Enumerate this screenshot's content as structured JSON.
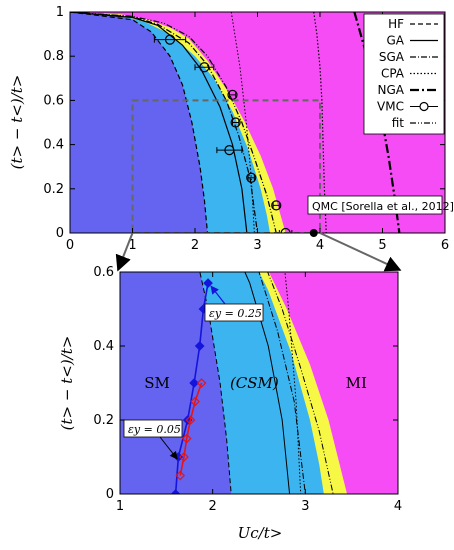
{
  "colors": {
    "sm": "#6464f0",
    "csm": "#3cb4f0",
    "yellow": "#f7f746",
    "mi": "#f54cf5",
    "blue_line": "#1414dc",
    "red_line": "#e61414",
    "inset_box": "#666666"
  },
  "chart_data": [
    {
      "type": "line",
      "xlabel": "",
      "ylabel": "(t> − t<)/t>",
      "xlim": [
        0,
        6
      ],
      "ylim": [
        0,
        1
      ],
      "x_ticks": [
        0,
        1,
        2,
        3,
        4,
        5,
        6
      ],
      "y_ticks": [
        0,
        0.2,
        0.4,
        0.6,
        0.8,
        1
      ],
      "x_tick_labels": [
        "0",
        "1",
        "2",
        "3",
        "4",
        "5",
        "6"
      ],
      "y_tick_labels": [
        "0",
        "0.2",
        "0.4",
        "0.6",
        "0.8",
        "1"
      ],
      "legend_position": "top-right",
      "legend": [
        {
          "label": "HF",
          "style": "dashed"
        },
        {
          "label": "GA",
          "style": "solid"
        },
        {
          "label": "SGA",
          "style": "dash-dot-fine"
        },
        {
          "label": "CPA",
          "style": "dotted"
        },
        {
          "label": "NGA",
          "style": "dash-dot"
        },
        {
          "label": "VMC",
          "style": "circle-errorbar"
        },
        {
          "label": "fit",
          "style": "dash-dot-dot"
        }
      ],
      "regions": [
        {
          "name": "sm",
          "boundary": [
            [
              0.0,
              1.0
            ],
            [
              0.6,
              0.99
            ],
            [
              1.0,
              0.965
            ],
            [
              1.3,
              0.91
            ],
            [
              1.6,
              0.8
            ],
            [
              1.8,
              0.67
            ],
            [
              1.95,
              0.5
            ],
            [
              2.08,
              0.3
            ],
            [
              2.15,
              0.15
            ],
            [
              2.2,
              0.0
            ]
          ]
        },
        {
          "name": "csm",
          "boundary": [
            [
              0.0,
              1.0
            ],
            [
              0.8,
              0.985
            ],
            [
              1.2,
              0.955
            ],
            [
              1.6,
              0.9
            ],
            [
              2.0,
              0.8
            ],
            [
              2.3,
              0.7
            ],
            [
              2.6,
              0.55
            ],
            [
              2.85,
              0.38
            ],
            [
              3.05,
              0.2
            ],
            [
              3.15,
              0.08
            ],
            [
              3.2,
              0.0
            ]
          ]
        },
        {
          "name": "yellow",
          "boundary": [
            [
              0.0,
              1.0
            ],
            [
              0.8,
              0.99
            ],
            [
              1.2,
              0.97
            ],
            [
              1.6,
              0.93
            ],
            [
              1.9,
              0.88
            ],
            [
              2.2,
              0.78
            ],
            [
              2.55,
              0.63
            ],
            [
              2.8,
              0.5
            ],
            [
              3.05,
              0.35
            ],
            [
              3.25,
              0.2
            ],
            [
              3.45,
              0.0
            ]
          ]
        },
        {
          "name": "mi_line",
          "boundary": [
            [
              2.58,
              1.0
            ],
            [
              2.72,
              0.75
            ],
            [
              2.82,
              0.5
            ],
            [
              2.9,
              0.25
            ],
            [
              2.95,
              0.0
            ]
          ]
        }
      ],
      "series": [
        {
          "name": "HF",
          "style": "dashed",
          "points": [
            [
              0,
              1
            ],
            [
              1.0,
              0.965
            ],
            [
              1.3,
              0.91
            ],
            [
              1.6,
              0.8
            ],
            [
              1.8,
              0.67
            ],
            [
              1.95,
              0.5
            ],
            [
              2.08,
              0.3
            ],
            [
              2.15,
              0.15
            ],
            [
              2.2,
              0.0
            ]
          ]
        },
        {
          "name": "GA",
          "style": "solid",
          "points": [
            [
              0,
              1
            ],
            [
              1.0,
              0.975
            ],
            [
              1.4,
              0.94
            ],
            [
              1.8,
              0.85
            ],
            [
              2.1,
              0.74
            ],
            [
              2.4,
              0.57
            ],
            [
              2.6,
              0.4
            ],
            [
              2.75,
              0.2
            ],
            [
              2.83,
              0.0
            ]
          ]
        },
        {
          "name": "SGA",
          "style": "dash-dot-fine",
          "points": [
            [
              0,
              1
            ],
            [
              1.0,
              0.978
            ],
            [
              1.4,
              0.945
            ],
            [
              1.9,
              0.86
            ],
            [
              2.2,
              0.76
            ],
            [
              2.5,
              0.6
            ],
            [
              2.7,
              0.44
            ],
            [
              2.88,
              0.25
            ],
            [
              3.0,
              0.0
            ]
          ]
        },
        {
          "name": "CPA",
          "style": "dotted",
          "points": [
            [
              3.9,
              1.0
            ],
            [
              3.95,
              0.9
            ],
            [
              4.0,
              0.75
            ],
            [
              4.03,
              0.6
            ],
            [
              4.05,
              0.4
            ],
            [
              4.07,
              0.2
            ],
            [
              4.1,
              0.0
            ]
          ]
        },
        {
          "name": "NGA",
          "style": "dash-dot",
          "points": [
            [
              4.55,
              1.0
            ],
            [
              4.7,
              0.85
            ],
            [
              4.85,
              0.68
            ],
            [
              5.0,
              0.5
            ],
            [
              5.1,
              0.34
            ],
            [
              5.2,
              0.15
            ],
            [
              5.27,
              0.0
            ]
          ]
        },
        {
          "name": "fit",
          "style": "dash-dot-dot",
          "points": [
            [
              0,
              1
            ],
            [
              1.0,
              0.98
            ],
            [
              1.5,
              0.95
            ],
            [
              1.9,
              0.89
            ],
            [
              2.2,
              0.8
            ],
            [
              2.5,
              0.66
            ],
            [
              2.75,
              0.5
            ],
            [
              2.95,
              0.34
            ],
            [
              3.15,
              0.17
            ],
            [
              3.3,
              0.0
            ]
          ]
        },
        {
          "name": "VMC",
          "style": "circle-errorbar",
          "points": [
            {
              "x": 1.6,
              "y": 0.875,
              "xerr": 0.25
            },
            {
              "x": 2.15,
              "y": 0.75,
              "xerr": 0.15
            },
            {
              "x": 2.6,
              "y": 0.625,
              "xerr": 0.05
            },
            {
              "x": 2.65,
              "y": 0.5,
              "xerr": 0.05
            },
            {
              "x": 2.55,
              "y": 0.375,
              "xerr": 0.2
            },
            {
              "x": 2.9,
              "y": 0.25,
              "xerr": 0.05
            },
            {
              "x": 3.3,
              "y": 0.125,
              "xerr": 0.05
            },
            {
              "x": 3.45,
              "y": 0.0,
              "xerr": 0.1
            }
          ]
        }
      ],
      "annotations": [
        {
          "text": "QMC [Sorella et al., 2012]",
          "x": 3.9,
          "y": 0.0,
          "marker": "filled-circle"
        }
      ],
      "inset_box": {
        "x": [
          1.0,
          4.0
        ],
        "y": [
          0.0,
          0.6
        ]
      }
    },
    {
      "type": "line",
      "xlabel": "Uc/t>",
      "ylabel": "(t> − t<)/t>",
      "xlim": [
        1,
        4
      ],
      "ylim": [
        0,
        0.6
      ],
      "x_ticks": [
        1,
        2,
        3,
        4
      ],
      "y_ticks": [
        0,
        0.2,
        0.4,
        0.6
      ],
      "x_tick_labels": [
        "1",
        "2",
        "3",
        "4"
      ],
      "y_tick_labels": [
        "0",
        "0.2",
        "0.4",
        "0.6"
      ],
      "phase_labels": [
        {
          "text": "SM",
          "x": 1.4,
          "y": 0.3
        },
        {
          "text": "(CSM)",
          "x": 2.45,
          "y": 0.3
        },
        {
          "text": "MI",
          "x": 3.55,
          "y": 0.3
        }
      ],
      "series": [
        {
          "name": "εy = 0.25",
          "color_key": "blue_line",
          "marker": "filled-diamond",
          "points": [
            [
              1.6,
              0.0
            ],
            [
              1.63,
              0.1
            ],
            [
              1.73,
              0.2
            ],
            [
              1.8,
              0.3
            ],
            [
              1.86,
              0.4
            ],
            [
              1.9,
              0.5
            ],
            [
              1.95,
              0.57
            ]
          ]
        },
        {
          "name": "εy = 0.05",
          "color_key": "red_line",
          "marker": "open-diamond",
          "points": [
            [
              1.65,
              0.05
            ],
            [
              1.69,
              0.1
            ],
            [
              1.72,
              0.15
            ],
            [
              1.76,
              0.2
            ],
            [
              1.81,
              0.25
            ],
            [
              1.88,
              0.3
            ]
          ]
        }
      ],
      "annotations": [
        {
          "text": "εy = 0.25",
          "arrow_to": [
            1.96,
            0.57
          ]
        },
        {
          "text": "εy = 0.05",
          "arrow_to": [
            1.65,
            0.1
          ]
        }
      ]
    }
  ]
}
